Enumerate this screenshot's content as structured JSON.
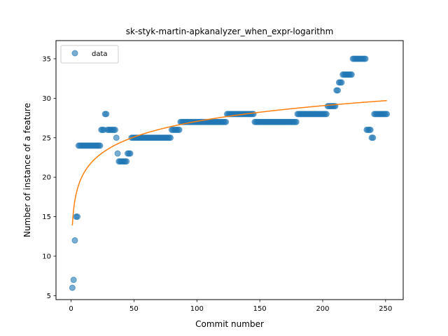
{
  "chart_data": {
    "type": "scatter",
    "title": "sk-styk-martin-apkanalyzer_when_expr-logarithm",
    "xlabel": "Commit number",
    "ylabel": "Number of instance of a feature",
    "xlim": [
      -12,
      264
    ],
    "ylim": [
      4.5,
      37.3
    ],
    "xticks": [
      0,
      50,
      100,
      150,
      200,
      250
    ],
    "yticks": [
      5,
      10,
      15,
      20,
      25,
      30,
      35
    ],
    "legend": {
      "position": "top-left",
      "entries": [
        "data"
      ]
    },
    "grid": false,
    "colors": {
      "scatter": "#1f77b4",
      "fit": "#ff7f0e"
    },
    "series": [
      {
        "name": "data",
        "kind": "scatter",
        "segments": [
          [
            1,
            1,
            6
          ],
          [
            2,
            2,
            7
          ],
          [
            3,
            3,
            12
          ],
          [
            4,
            5,
            15
          ],
          [
            6,
            23,
            24
          ],
          [
            24,
            26,
            26
          ],
          [
            27,
            28,
            28
          ],
          [
            29,
            35,
            26
          ],
          [
            36,
            36,
            25
          ],
          [
            37,
            37,
            23
          ],
          [
            38,
            44,
            22
          ],
          [
            45,
            47,
            23
          ],
          [
            48,
            79,
            25
          ],
          [
            80,
            86,
            26
          ],
          [
            87,
            123,
            27
          ],
          [
            124,
            145,
            28
          ],
          [
            146,
            179,
            27
          ],
          [
            180,
            203,
            28
          ],
          [
            204,
            210,
            29
          ],
          [
            211,
            212,
            31
          ],
          [
            213,
            215,
            32
          ],
          [
            216,
            223,
            33
          ],
          [
            224,
            234,
            35
          ],
          [
            235,
            238,
            26
          ],
          [
            239,
            240,
            25
          ],
          [
            241,
            251,
            28
          ]
        ]
      },
      {
        "name": "",
        "kind": "line",
        "fit": {
          "model": "logarithmic",
          "a": 13.9,
          "b": 2.86,
          "x_start": 1,
          "x_end": 251
        }
      }
    ]
  }
}
